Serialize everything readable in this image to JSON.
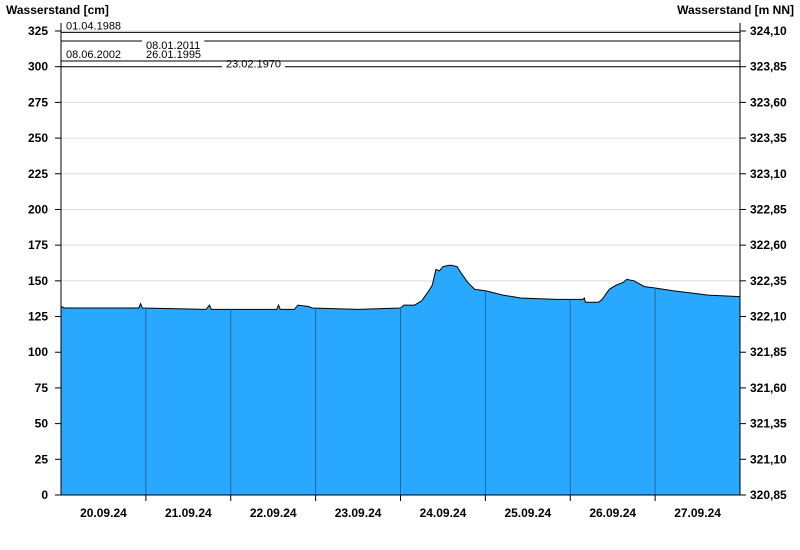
{
  "chart_data": {
    "type": "area",
    "ylabel_left": "Wasserstand [cm]",
    "ylabel_right": "Wasserstand [m NN]",
    "ylim": [
      0,
      325
    ],
    "yticks": [
      0,
      25,
      50,
      75,
      100,
      125,
      150,
      175,
      200,
      225,
      250,
      275,
      300,
      325
    ],
    "yticks_right": [
      "320,85",
      "321,10",
      "321,35",
      "321,60",
      "321,85",
      "322,10",
      "322,35",
      "322,60",
      "322,85",
      "323,10",
      "323,35",
      "323,60",
      "323,85",
      "324,10"
    ],
    "xlim": [
      "2024-09-20T00:00",
      "2024-09-28T00:00"
    ],
    "xtick_labels": [
      "20.09.24",
      "21.09.24",
      "22.09.24",
      "23.09.24",
      "24.09.24",
      "25.09.24",
      "26.09.24",
      "27.09.24"
    ],
    "grid": true,
    "fill_color": "#29a8ff",
    "reference_lines": [
      {
        "label": "01.04.1988",
        "value": 324
      },
      {
        "label": "08.01.2011",
        "value": 318
      },
      {
        "label": "08.06.2002",
        "value": 304
      },
      {
        "label": "26.01.1995",
        "value": 304
      },
      {
        "label": "23.02.1970",
        "value": 300
      }
    ],
    "series": [
      {
        "points": [
          [
            "2024-09-20T00:00",
            132
          ],
          [
            "2024-09-20T01:00",
            131
          ],
          [
            "2024-09-20T22:00",
            131
          ],
          [
            "2024-09-20T22:30",
            134
          ],
          [
            "2024-09-20T23:00",
            131
          ],
          [
            "2024-09-21T17:00",
            130
          ],
          [
            "2024-09-21T18:00",
            133
          ],
          [
            "2024-09-21T18:30",
            130
          ],
          [
            "2024-09-22T13:00",
            130
          ],
          [
            "2024-09-22T13:30",
            133
          ],
          [
            "2024-09-22T14:00",
            130
          ],
          [
            "2024-09-22T18:00",
            130
          ],
          [
            "2024-09-22T19:00",
            133
          ],
          [
            "2024-09-22T22:00",
            132
          ],
          [
            "2024-09-22T23:00",
            131
          ],
          [
            "2024-09-23T12:00",
            130
          ],
          [
            "2024-09-24T00:00",
            131
          ],
          [
            "2024-09-24T01:00",
            133
          ],
          [
            "2024-09-24T04:00",
            133
          ],
          [
            "2024-09-24T06:00",
            136
          ],
          [
            "2024-09-24T08:00",
            143
          ],
          [
            "2024-09-24T09:00",
            147
          ],
          [
            "2024-09-24T10:00",
            158
          ],
          [
            "2024-09-24T11:00",
            157
          ],
          [
            "2024-09-24T12:00",
            160
          ],
          [
            "2024-09-24T14:00",
            161
          ],
          [
            "2024-09-24T16:00",
            160
          ],
          [
            "2024-09-24T17:00",
            156
          ],
          [
            "2024-09-24T19:00",
            149
          ],
          [
            "2024-09-24T21:00",
            144
          ],
          [
            "2024-09-25T00:00",
            143
          ],
          [
            "2024-09-25T05:00",
            140
          ],
          [
            "2024-09-25T10:00",
            138
          ],
          [
            "2024-09-25T20:00",
            137
          ],
          [
            "2024-09-26T03:30",
            137
          ],
          [
            "2024-09-26T04:00",
            138
          ],
          [
            "2024-09-26T04:15",
            135
          ],
          [
            "2024-09-26T08:00",
            135
          ],
          [
            "2024-09-26T09:00",
            137
          ],
          [
            "2024-09-26T11:00",
            144
          ],
          [
            "2024-09-26T13:00",
            147
          ],
          [
            "2024-09-26T15:00",
            149
          ],
          [
            "2024-09-26T16:00",
            151
          ],
          [
            "2024-09-26T18:00",
            150
          ],
          [
            "2024-09-26T21:00",
            146
          ],
          [
            "2024-09-27T00:00",
            145
          ],
          [
            "2024-09-27T05:00",
            143
          ],
          [
            "2024-09-27T12:00",
            141
          ],
          [
            "2024-09-27T15:00",
            140
          ],
          [
            "2024-09-28T00:00",
            139
          ]
        ]
      }
    ]
  }
}
